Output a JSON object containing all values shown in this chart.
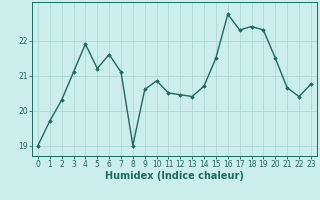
{
  "x": [
    0,
    1,
    2,
    3,
    4,
    5,
    6,
    7,
    8,
    9,
    10,
    11,
    12,
    13,
    14,
    15,
    16,
    17,
    18,
    19,
    20,
    21,
    22,
    23
  ],
  "y": [
    19.0,
    19.7,
    20.3,
    21.1,
    21.9,
    21.2,
    21.6,
    21.1,
    19.0,
    20.6,
    20.85,
    20.5,
    20.45,
    20.4,
    20.7,
    21.5,
    22.75,
    22.3,
    22.4,
    22.3,
    21.5,
    20.65,
    20.4,
    20.75
  ],
  "line_color": "#1a6b5e",
  "marker": "D",
  "markersize": 1.8,
  "linewidth": 1.0,
  "xlabel": "Humidex (Indice chaleur)",
  "xlim": [
    -0.5,
    23.5
  ],
  "ylim": [
    18.7,
    23.1
  ],
  "yticks": [
    19,
    20,
    21,
    22
  ],
  "xticks": [
    0,
    1,
    2,
    3,
    4,
    5,
    6,
    7,
    8,
    9,
    10,
    11,
    12,
    13,
    14,
    15,
    16,
    17,
    18,
    19,
    20,
    21,
    22,
    23
  ],
  "bg_color": "#cceeea",
  "grid_color": "#aad4ce",
  "axes_color": "#1a6b5e",
  "tick_label_fontsize": 5.5,
  "xlabel_fontsize": 7.0
}
